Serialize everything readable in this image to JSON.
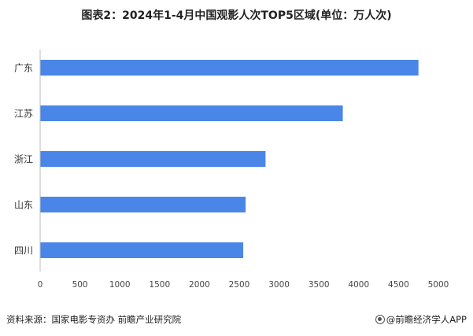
{
  "chart_data": {
    "type": "bar",
    "orientation": "horizontal",
    "title": "图表2：2024年1-4月中国观影人次TOP5区域(单位：万人次)",
    "categories": [
      "广东",
      "江苏",
      "浙江",
      "山东",
      "四川"
    ],
    "values": [
      4750,
      3800,
      2830,
      2580,
      2550
    ],
    "xlim": [
      0,
      5000
    ],
    "xticks": [
      "0",
      "500",
      "1000",
      "1500",
      "2000",
      "2500",
      "3000",
      "3500",
      "4000",
      "4500",
      "5000"
    ],
    "bar_color": "#4a86e8",
    "grid": false
  },
  "footer": {
    "source": "资料来源：国家电影专资办 前瞻产业研究院",
    "brand": "@前瞻经济学人APP"
  }
}
